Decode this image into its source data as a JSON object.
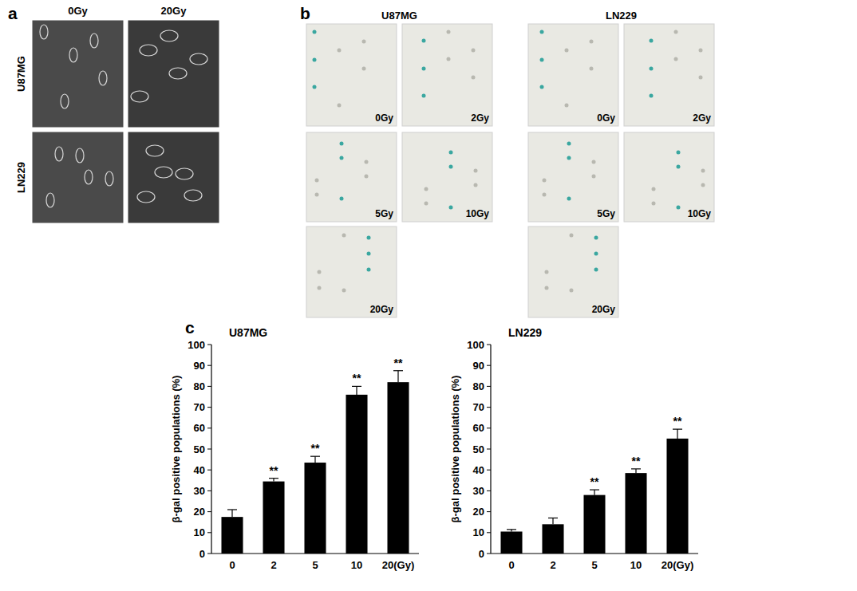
{
  "panels": {
    "a": {
      "label": "a",
      "columns": [
        "0Gy",
        "20Gy"
      ],
      "rows": [
        "U87MG",
        "LN229"
      ]
    },
    "b": {
      "label": "b",
      "groups": [
        {
          "name": "U87MG",
          "doses": [
            "0Gy",
            "2Gy",
            "5Gy",
            "10Gy",
            "20Gy"
          ]
        },
        {
          "name": "LN229",
          "doses": [
            "0Gy",
            "2Gy",
            "5Gy",
            "10Gy",
            "20Gy"
          ]
        }
      ]
    },
    "c": {
      "label": "c"
    }
  },
  "chart_data": [
    {
      "type": "bar",
      "title": "U87MG",
      "y_label": "β-gal positive populations (%)",
      "categories": [
        "0",
        "2",
        "5",
        "10",
        "20(Gy)"
      ],
      "values": [
        17.5,
        34.5,
        43.5,
        76,
        82
      ],
      "errors": [
        3.5,
        1.5,
        3,
        4,
        5.5
      ],
      "significance": [
        null,
        "**",
        "**",
        "**",
        "**"
      ],
      "color": "#000000",
      "ylim": [
        0,
        100
      ],
      "yticks": [
        0,
        10,
        20,
        30,
        40,
        50,
        60,
        70,
        80,
        90,
        100
      ],
      "grid": false
    },
    {
      "type": "bar",
      "title": "LN229",
      "y_label": "β-gal positive populations (%)",
      "categories": [
        "0",
        "2",
        "5",
        "10",
        "20(Gy)"
      ],
      "values": [
        10.5,
        14,
        28,
        38.5,
        55
      ],
      "errors": [
        1,
        3,
        2.5,
        2,
        4.5
      ],
      "significance": [
        null,
        null,
        "**",
        "**",
        "**"
      ],
      "color": "#000000",
      "ylim": [
        0,
        100
      ],
      "yticks": [
        0,
        10,
        20,
        30,
        40,
        50,
        60,
        70,
        80,
        90,
        100
      ],
      "grid": false
    }
  ]
}
